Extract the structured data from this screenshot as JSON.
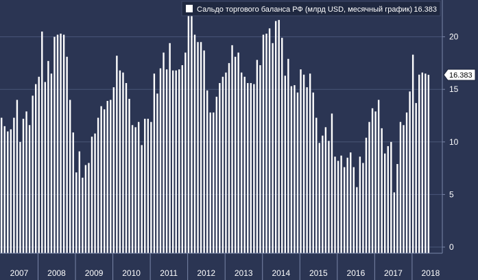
{
  "legend": {
    "label": "Сальдо торгового баланса РФ (млрд USD, месячный график)",
    "last_value": "16.383"
  },
  "last_value_tag": "16.383",
  "colors": {
    "background": "#2b3553",
    "bar": "#ffffff",
    "grid": "#4a5678",
    "text": "#ffffff"
  },
  "chart_data": {
    "type": "bar",
    "title": "Сальдо торгового баланса РФ (млрд USD, месячный график)",
    "xlabel": "",
    "ylabel": "",
    "ylim": [
      0,
      23.5
    ],
    "y_ticks": [
      0,
      5,
      10,
      15,
      20
    ],
    "x_ticks": [
      "2007",
      "2008",
      "2009",
      "2010",
      "2011",
      "2012",
      "2013",
      "2014",
      "2015",
      "2016",
      "2017",
      "2018"
    ],
    "grid": true,
    "legend_position": "top-right",
    "series": [
      {
        "name": "Сальдо торгового баланса РФ (млрд USD, месячный график)",
        "start": "2007-01",
        "frequency": "monthly",
        "values": [
          12.3,
          11.5,
          11.0,
          11.2,
          12.3,
          14.0,
          10.0,
          12.2,
          12.9,
          11.6,
          14.4,
          15.5,
          16.2,
          20.5,
          15.7,
          17.7,
          16.5,
          20.0,
          20.2,
          20.3,
          20.2,
          18.1,
          14.0,
          10.9,
          7.1,
          9.1,
          6.6,
          7.8,
          8.0,
          10.5,
          10.8,
          12.3,
          13.4,
          13.1,
          13.9,
          14.0,
          15.2,
          18.2,
          16.8,
          16.6,
          15.6,
          14.1,
          11.6,
          11.4,
          11.9,
          9.7,
          12.2,
          12.2,
          11.9,
          16.5,
          14.6,
          17.0,
          18.5,
          16.9,
          19.4,
          16.8,
          16.8,
          16.9,
          17.3,
          18.5,
          22.2,
          22.1,
          20.2,
          19.5,
          19.5,
          18.7,
          14.9,
          12.8,
          12.8,
          14.3,
          15.6,
          16.2,
          16.6,
          17.5,
          19.2,
          18.1,
          18.5,
          16.6,
          16.2,
          15.6,
          15.6,
          15.5,
          17.8,
          17.3,
          20.2,
          20.3,
          20.8,
          19.4,
          21.5,
          21.6,
          19.9,
          16.3,
          17.9,
          15.3,
          15.4,
          14.7,
          16.9,
          16.4,
          15.2,
          16.5,
          14.7,
          12.3,
          9.9,
          10.6,
          11.4,
          10.1,
          12.7,
          8.6,
          8.2,
          8.7,
          7.6,
          8.5,
          9.0,
          7.6,
          5.7,
          8.6,
          8.0,
          10.4,
          11.9,
          13.2,
          12.9,
          14.0,
          11.3,
          8.9,
          9.6,
          10.0,
          5.2,
          7.9,
          11.9,
          11.6,
          12.8,
          14.8,
          18.3,
          13.7,
          16.4,
          16.6,
          16.5,
          16.383
        ]
      }
    ]
  }
}
